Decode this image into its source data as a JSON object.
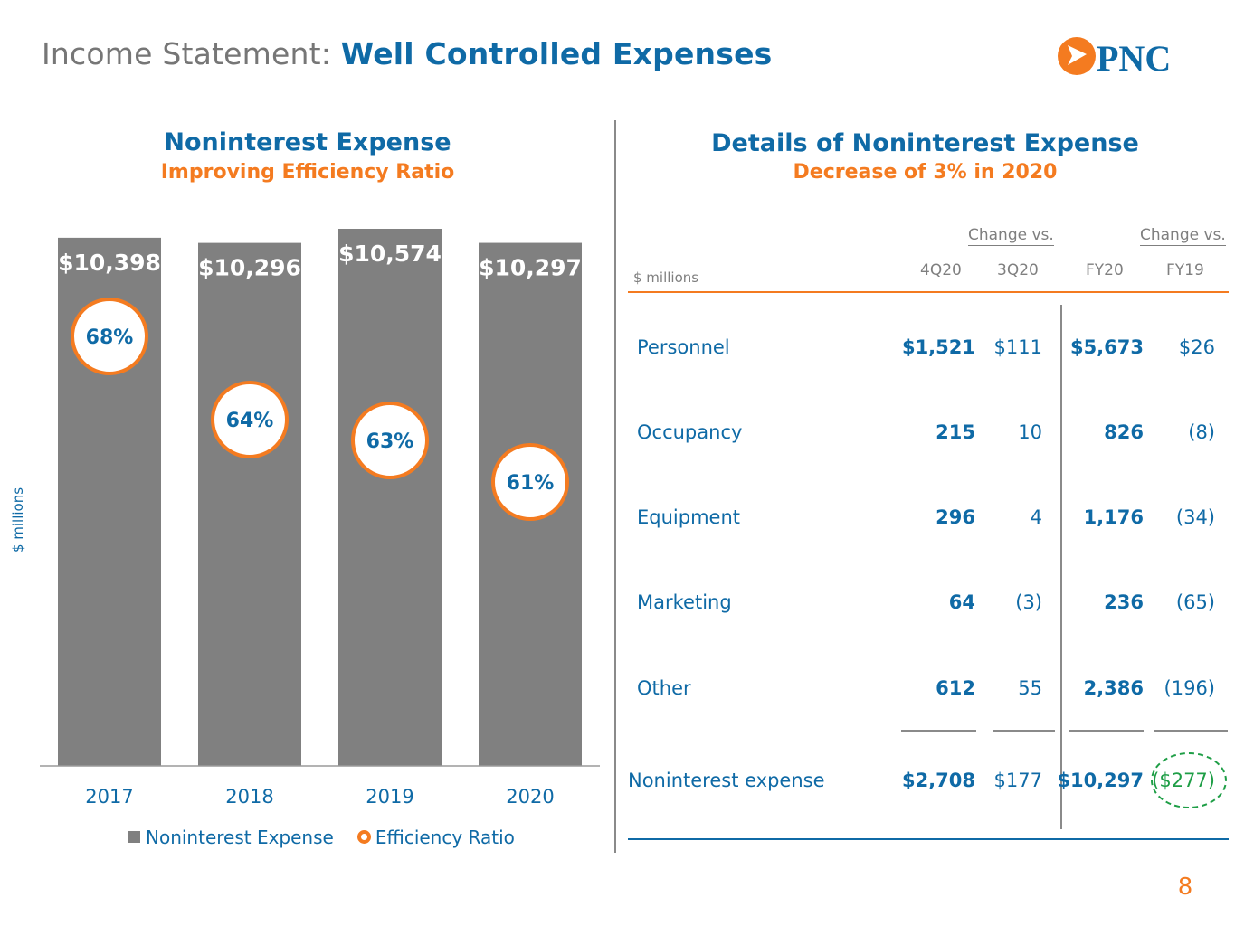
{
  "title": {
    "prefix": "Income Statement: ",
    "main": "Well Controlled Expenses"
  },
  "logo": {
    "text": "PNC"
  },
  "colors": {
    "blue": "#0f6aa6",
    "orange": "#f47b20",
    "gray_bar": "#808080",
    "green": "#1e9e46"
  },
  "left": {
    "title": "Noninterest Expense",
    "subtitle": "Improving Efficiency Ratio",
    "ylabel": "$ millions",
    "legend": {
      "expense": "Noninterest Expense",
      "ratio": "Efficiency Ratio"
    }
  },
  "chart_data": {
    "type": "bar",
    "title": "Noninterest Expense",
    "subtitle": "Improving Efficiency Ratio",
    "xlabel": "",
    "ylabel": "$ millions",
    "categories": [
      "2017",
      "2018",
      "2019",
      "2020"
    ],
    "series": [
      {
        "name": "Noninterest Expense",
        "values": [
          10398,
          10296,
          10574,
          10297
        ],
        "labels": [
          "$10,398",
          "$10,296",
          "$10,574",
          "$10,297"
        ]
      },
      {
        "name": "Efficiency Ratio",
        "values": [
          68,
          64,
          63,
          61
        ],
        "labels": [
          "68%",
          "64%",
          "63%",
          "61%"
        ]
      }
    ],
    "ylim": [
      0,
      10574
    ],
    "ratio_ylim": [
      52,
      72
    ],
    "grid": false,
    "legend": "bottom"
  },
  "right": {
    "title": "Details of Noninterest Expense",
    "subtitle": "Decrease of 3% in 2020",
    "units": "$ millions",
    "change_vs": [
      "Change vs.",
      "Change vs."
    ],
    "columns": [
      "4Q20",
      "3Q20",
      "FY20",
      "FY19"
    ],
    "rows": [
      {
        "label": "Personnel",
        "q4": "$1,521",
        "q3": "$111",
        "fy20": "$5,673",
        "fy19": "$26"
      },
      {
        "label": "Occupancy",
        "q4": "215",
        "q3": "10",
        "fy20": "826",
        "fy19": "(8)"
      },
      {
        "label": "Equipment",
        "q4": "296",
        "q3": "4",
        "fy20": "1,176",
        "fy19": "(34)"
      },
      {
        "label": "Marketing",
        "q4": "64",
        "q3": "(3)",
        "fy20": "236",
        "fy19": "(65)"
      },
      {
        "label": "Other",
        "q4": "612",
        "q3": "55",
        "fy20": "2,386",
        "fy19": "(196)"
      }
    ],
    "total": {
      "label": "Noninterest expense",
      "q4": "$2,708",
      "q3": "$177",
      "fy20": "$10,297",
      "fy19": "($277)"
    }
  },
  "page_number": "8"
}
